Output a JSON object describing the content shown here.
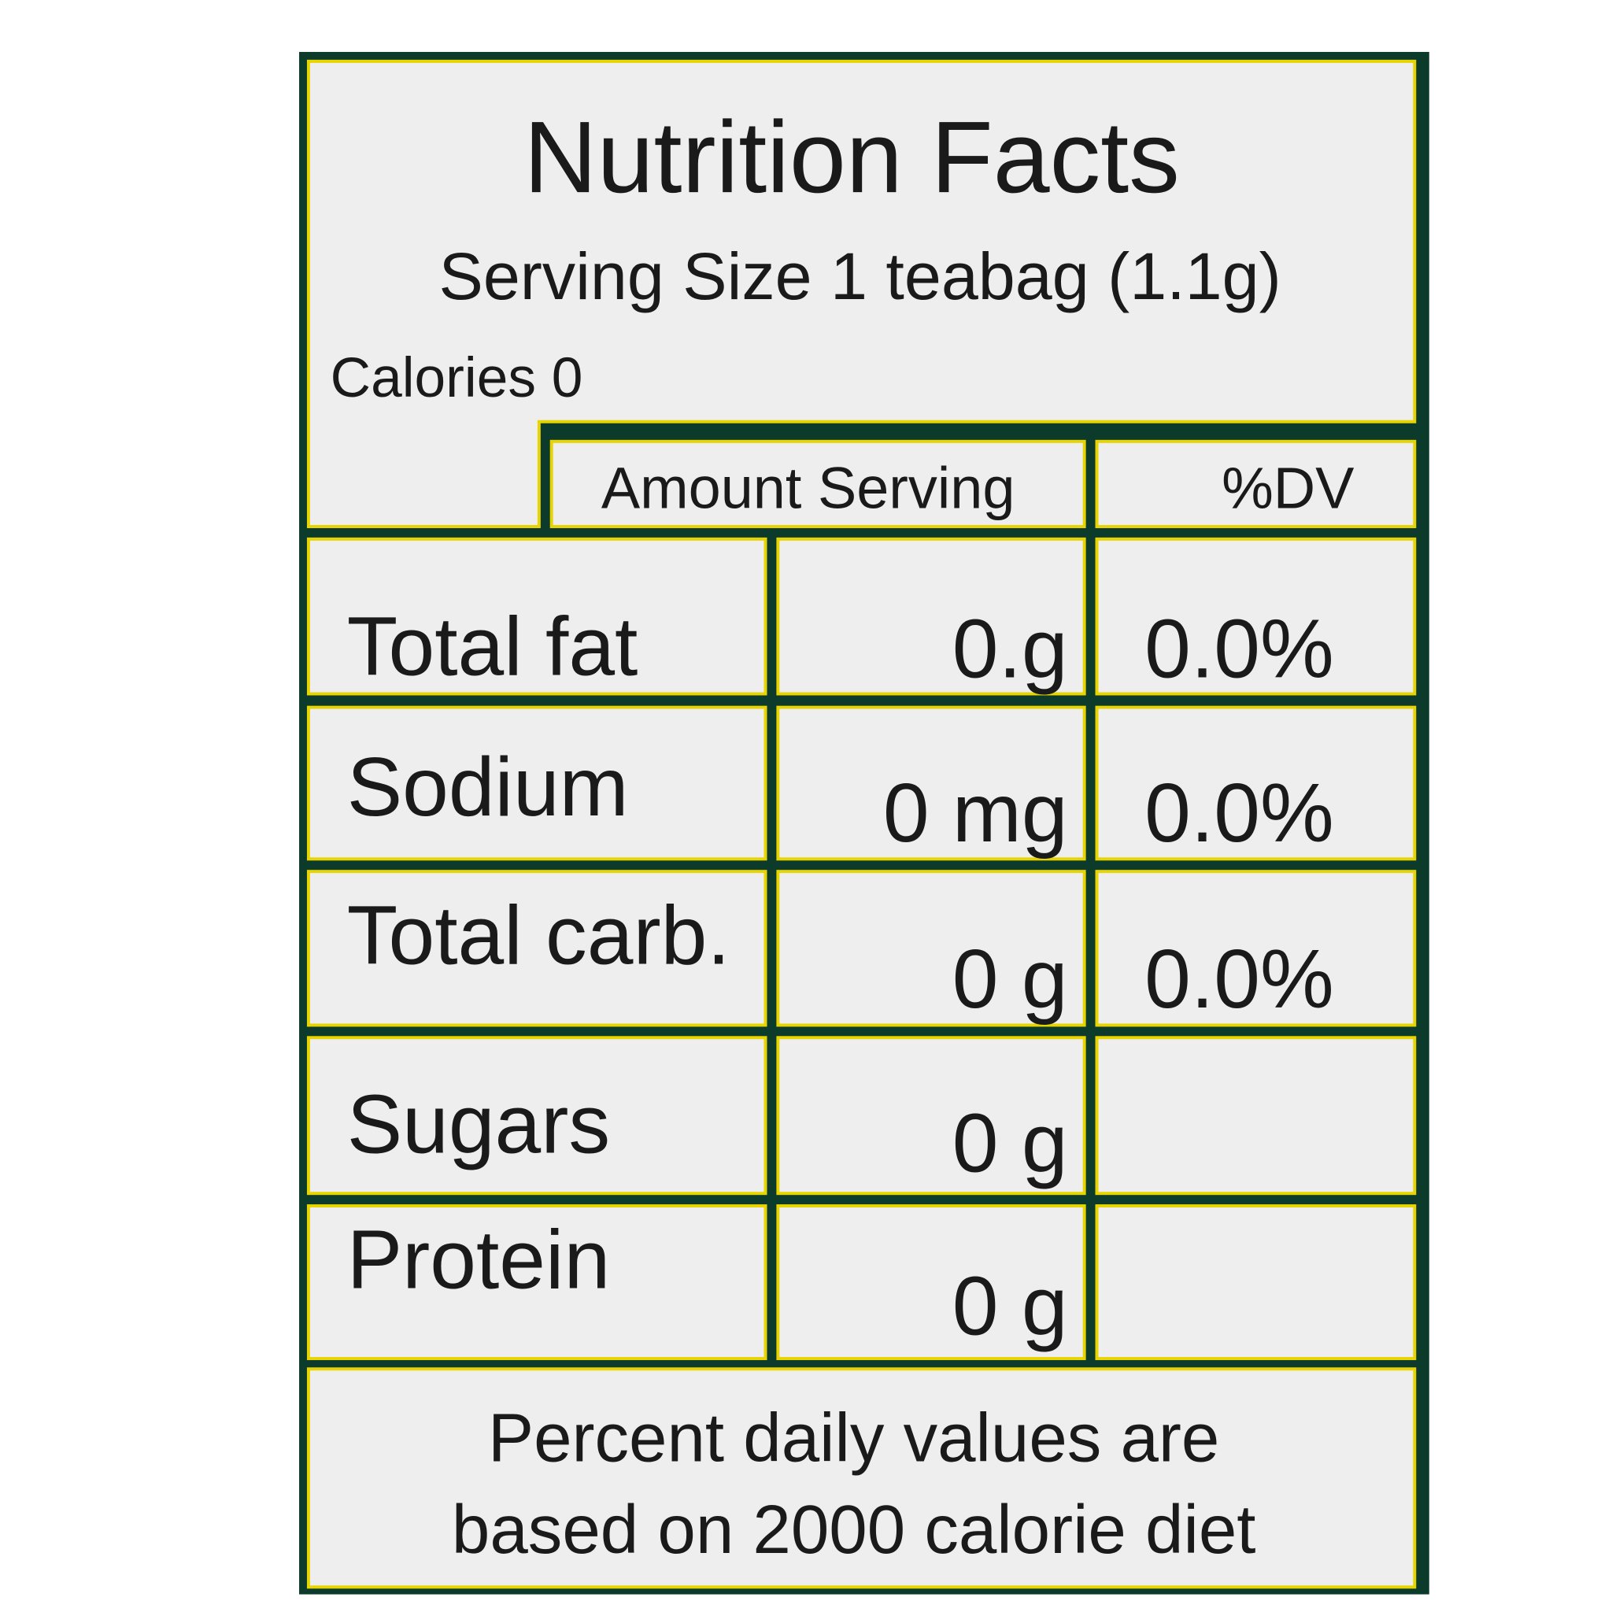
{
  "header": {
    "title": "Nutrition Facts",
    "serving_size": "Serving Size 1 teabag (1.1g)",
    "calories": "Calories 0"
  },
  "table": {
    "columns": [
      "Amount Serving",
      "%DV"
    ],
    "rows": [
      [
        "Total fat",
        "0.g",
        "0.0%"
      ],
      [
        "Sodium",
        "0 mg",
        "0.0%"
      ],
      [
        "Total carb.",
        "0 g",
        "0.0%"
      ],
      [
        "Sugars",
        "0 g"
      ],
      [
        "Protein",
        "0 g"
      ]
    ]
  },
  "footer": [
    "Percent daily values are",
    "based on 2000 calorie diet"
  ]
}
